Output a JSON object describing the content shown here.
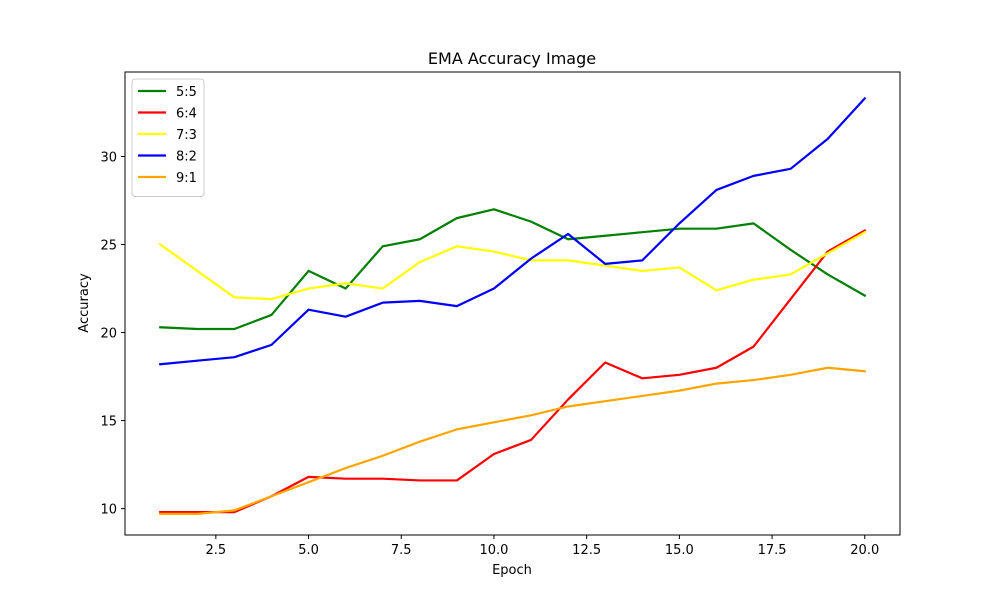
{
  "chart_data": {
    "type": "line",
    "title": "EMA Accuracy Image",
    "xlabel": "Epoch",
    "ylabel": "Accuracy",
    "xlim": [
      0.05,
      20.95
    ],
    "ylim": [
      8.5,
      34.8
    ],
    "xticks": [
      2.5,
      5.0,
      7.5,
      10.0,
      12.5,
      15.0,
      17.5,
      20.0
    ],
    "xtick_labels": [
      "2.5",
      "5.0",
      "7.5",
      "10.0",
      "12.5",
      "15.0",
      "17.5",
      "20.0"
    ],
    "yticks": [
      10,
      15,
      20,
      25,
      30
    ],
    "ytick_labels": [
      "10",
      "15",
      "20",
      "25",
      "30"
    ],
    "grid": false,
    "legend_position": "top-left",
    "x": [
      1,
      2,
      3,
      4,
      5,
      6,
      7,
      8,
      9,
      10,
      11,
      12,
      13,
      14,
      15,
      16,
      17,
      18,
      19,
      20
    ],
    "series": [
      {
        "name": "5:5",
        "color": "#008000",
        "values": [
          20.3,
          20.2,
          20.2,
          21.0,
          23.5,
          22.5,
          24.9,
          25.3,
          26.5,
          27.0,
          26.3,
          25.3,
          25.5,
          25.7,
          25.9,
          25.9,
          26.2,
          24.7,
          23.3,
          22.1
        ]
      },
      {
        "name": "6:4",
        "color": "#ff0000",
        "values": [
          9.8,
          9.8,
          9.8,
          10.7,
          11.8,
          11.7,
          11.7,
          11.6,
          11.6,
          13.1,
          13.9,
          16.2,
          18.3,
          17.4,
          17.6,
          18.0,
          19.2,
          21.9,
          24.6,
          25.8
        ]
      },
      {
        "name": "7:3",
        "color": "#ffff00",
        "values": [
          25.0,
          23.5,
          22.0,
          21.9,
          22.5,
          22.8,
          22.5,
          24.0,
          24.9,
          24.6,
          24.1,
          24.1,
          23.8,
          23.5,
          23.7,
          22.4,
          23.0,
          23.3,
          24.5,
          25.7
        ]
      },
      {
        "name": "8:2",
        "color": "#0000ff",
        "values": [
          18.2,
          18.4,
          18.6,
          19.3,
          21.3,
          20.9,
          21.7,
          21.8,
          21.5,
          22.5,
          24.2,
          25.6,
          23.9,
          24.1,
          26.2,
          28.1,
          28.9,
          29.3,
          31.0,
          33.3
        ]
      },
      {
        "name": "9:1",
        "color": "#ffa500",
        "values": [
          9.7,
          9.7,
          9.9,
          10.7,
          11.5,
          12.3,
          13.0,
          13.8,
          14.5,
          14.9,
          15.3,
          15.8,
          16.1,
          16.4,
          16.7,
          17.1,
          17.3,
          17.6,
          18.0,
          17.8
        ]
      }
    ]
  }
}
